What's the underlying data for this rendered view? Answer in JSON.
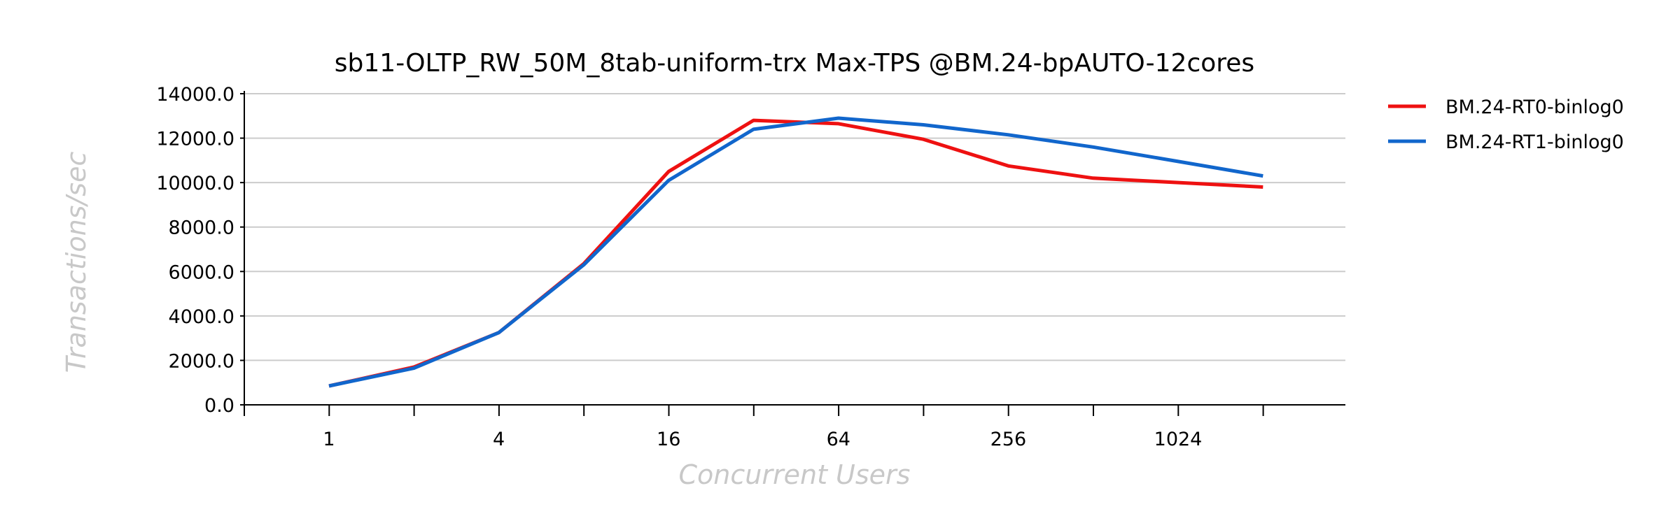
{
  "chart_data": {
    "type": "line",
    "title": "sb11-OLTP_RW_50M_8tab-uniform-trx Max-TPS @BM.24-bpAUTO-12cores",
    "xlabel": "Concurrent Users",
    "ylabel": "Transactions/sec",
    "x_scale": "log2",
    "x": [
      1,
      2,
      4,
      8,
      16,
      32,
      64,
      128,
      256,
      512,
      1024,
      2048
    ],
    "x_tick_labels": [
      "1",
      "",
      "4",
      "",
      "16",
      "",
      "64",
      "",
      "256",
      "",
      "1024",
      ""
    ],
    "ylim": [
      0,
      14000
    ],
    "y_ticks": [
      "0.0",
      "2000.0",
      "4000.0",
      "6000.0",
      "8000.0",
      "10000.0",
      "12000.0",
      "14000.0"
    ],
    "grid": true,
    "legend_position": "right",
    "series": [
      {
        "name": "BM.24-RT0-binlog0",
        "color": "#ee1111",
        "values": [
          850,
          1700,
          3250,
          6350,
          10500,
          12800,
          12650,
          11950,
          10750,
          10200,
          10000,
          9800
        ]
      },
      {
        "name": "BM.24-RT1-binlog0",
        "color": "#1166cc",
        "values": [
          850,
          1650,
          3250,
          6300,
          10100,
          12400,
          12900,
          12600,
          12150,
          11600,
          10950,
          10300
        ]
      }
    ]
  }
}
